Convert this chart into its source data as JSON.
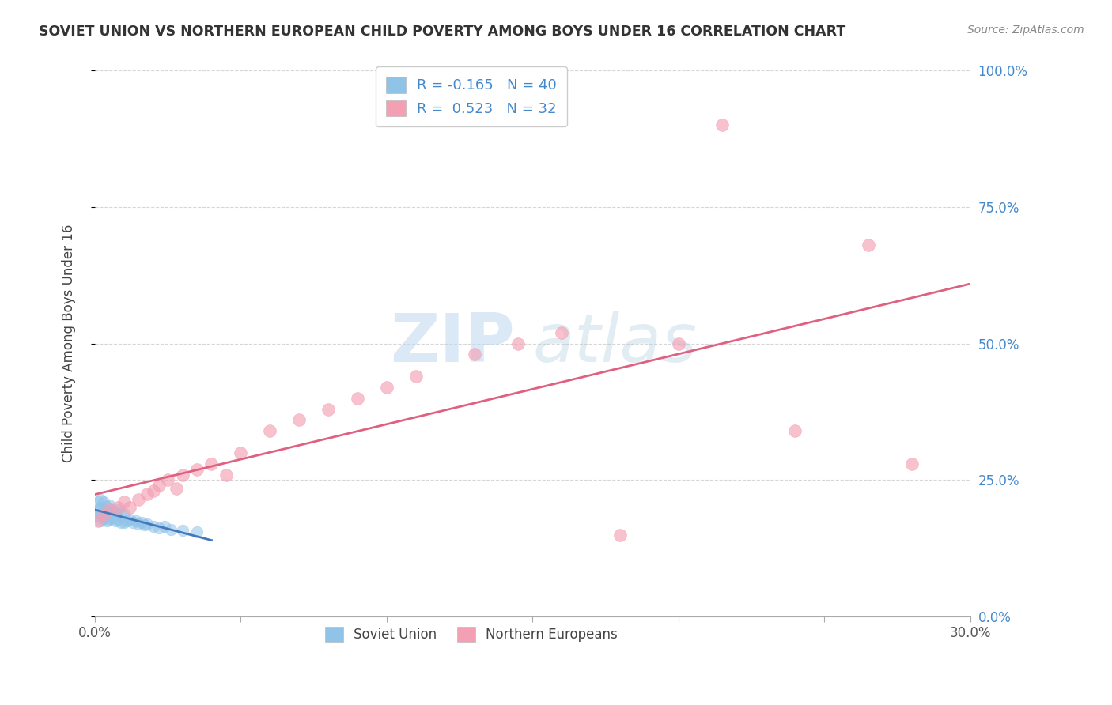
{
  "title": "SOVIET UNION VS NORTHERN EUROPEAN CHILD POVERTY AMONG BOYS UNDER 16 CORRELATION CHART",
  "source": "Source: ZipAtlas.com",
  "ylabel": "Child Poverty Among Boys Under 16",
  "xlim": [
    0.0,
    0.3
  ],
  "ylim": [
    0.0,
    1.0
  ],
  "soviet_R": -0.165,
  "soviet_N": 40,
  "northern_R": 0.523,
  "northern_N": 32,
  "soviet_color": "#8FC4E8",
  "northern_color": "#F4A0B4",
  "soviet_line_color": "#4477BB",
  "northern_line_color": "#E06080",
  "watermark_zip": "ZIP",
  "watermark_atlas": "atlas",
  "background_color": "#FFFFFF",
  "tick_label_color": "#4488CC",
  "title_color": "#333333",
  "source_color": "#888888",
  "soviet_x": [
    0.001,
    0.001,
    0.001,
    0.002,
    0.002,
    0.002,
    0.002,
    0.003,
    0.003,
    0.003,
    0.004,
    0.004,
    0.004,
    0.005,
    0.005,
    0.005,
    0.006,
    0.006,
    0.007,
    0.007,
    0.008,
    0.008,
    0.009,
    0.009,
    0.01,
    0.01,
    0.011,
    0.012,
    0.013,
    0.014,
    0.015,
    0.016,
    0.017,
    0.018,
    0.02,
    0.022,
    0.024,
    0.026,
    0.03,
    0.035
  ],
  "soviet_y": [
    0.185,
    0.195,
    0.21,
    0.175,
    0.188,
    0.2,
    0.215,
    0.18,
    0.195,
    0.21,
    0.175,
    0.188,
    0.202,
    0.178,
    0.192,
    0.205,
    0.18,
    0.196,
    0.175,
    0.19,
    0.178,
    0.195,
    0.173,
    0.188,
    0.172,
    0.188,
    0.175,
    0.178,
    0.172,
    0.175,
    0.17,
    0.172,
    0.168,
    0.17,
    0.165,
    0.162,
    0.165,
    0.16,
    0.158,
    0.155
  ],
  "northern_x": [
    0.001,
    0.003,
    0.005,
    0.008,
    0.01,
    0.012,
    0.015,
    0.018,
    0.02,
    0.022,
    0.025,
    0.028,
    0.03,
    0.035,
    0.04,
    0.045,
    0.05,
    0.06,
    0.07,
    0.08,
    0.09,
    0.1,
    0.11,
    0.13,
    0.145,
    0.16,
    0.18,
    0.2,
    0.215,
    0.24,
    0.265,
    0.28
  ],
  "northern_y": [
    0.175,
    0.185,
    0.195,
    0.2,
    0.21,
    0.2,
    0.215,
    0.225,
    0.23,
    0.24,
    0.25,
    0.235,
    0.26,
    0.27,
    0.28,
    0.26,
    0.3,
    0.34,
    0.36,
    0.38,
    0.4,
    0.42,
    0.44,
    0.48,
    0.5,
    0.52,
    0.15,
    0.5,
    0.9,
    0.34,
    0.68,
    0.28
  ],
  "soviet_line_x": [
    0.0,
    0.04
  ],
  "northern_line_x": [
    0.0,
    0.3
  ]
}
